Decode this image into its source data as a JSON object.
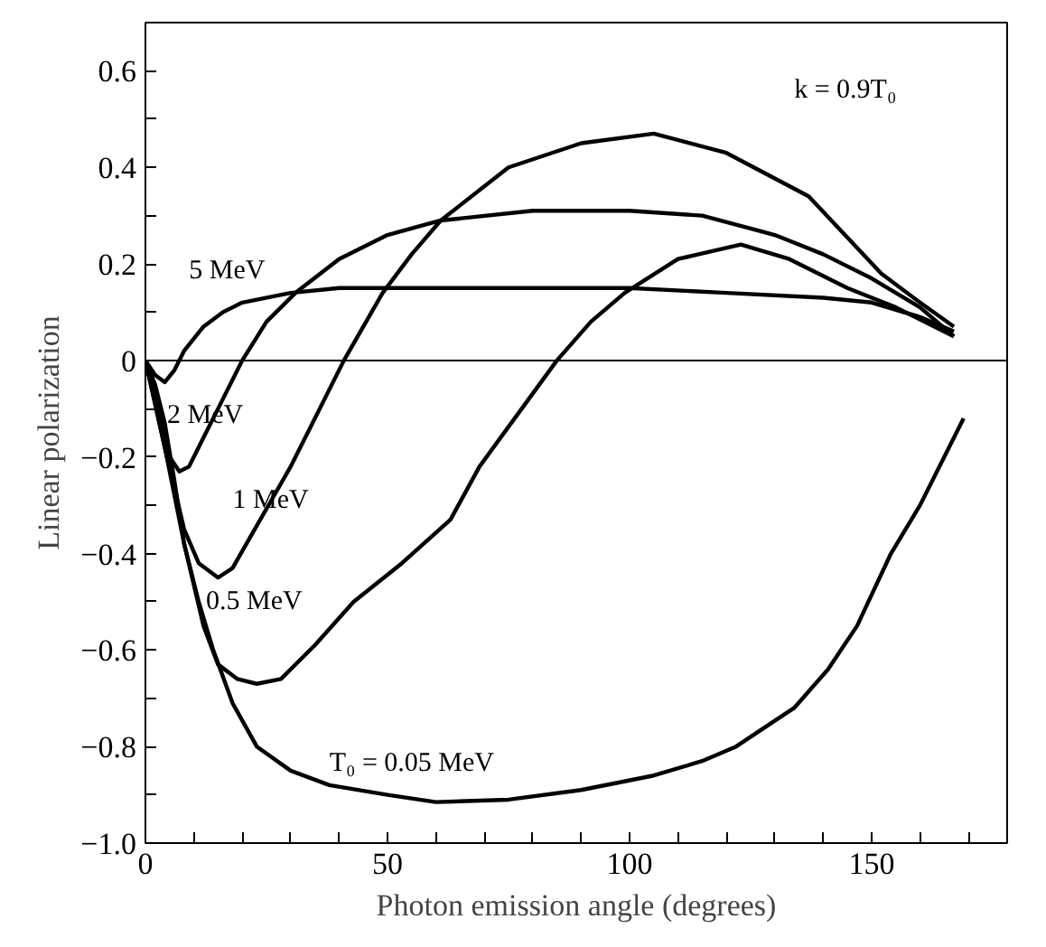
{
  "chart_data": {
    "type": "line",
    "xlabel": "Photon emission angle (degrees)",
    "ylabel": "Linear polarization",
    "xlim": [
      0,
      178
    ],
    "ylim": [
      -1.0,
      0.7
    ],
    "xticks": [
      0,
      {
        "value": 10,
        "label": null
      },
      {
        "value": 20,
        "label": null
      },
      {
        "value": 30,
        "label": null
      },
      {
        "value": 40,
        "label": null
      },
      50,
      {
        "value": 60,
        "label": null
      },
      {
        "value": 70,
        "label": null
      },
      {
        "value": 80,
        "label": null
      },
      {
        "value": 90,
        "label": null
      },
      100,
      {
        "value": 110,
        "label": null
      },
      {
        "value": 120,
        "label": null
      },
      {
        "value": 130,
        "label": null
      },
      {
        "value": 140,
        "label": null
      },
      150,
      {
        "value": 160,
        "label": null
      },
      {
        "value": 170,
        "label": null
      }
    ],
    "yticks": [
      {
        "value": -1.0,
        "label": "−1.0"
      },
      {
        "value": -0.9,
        "label": null
      },
      {
        "value": -0.8,
        "label": "−0.8"
      },
      {
        "value": -0.7,
        "label": null
      },
      {
        "value": -0.6,
        "label": "−0.6"
      },
      {
        "value": -0.5,
        "label": null
      },
      {
        "value": -0.4,
        "label": "−0.4"
      },
      {
        "value": -0.3,
        "label": null
      },
      {
        "value": -0.2,
        "label": "−0.2"
      },
      {
        "value": -0.1,
        "label": null
      },
      0,
      {
        "value": 0.1,
        "label": null
      },
      0.2,
      {
        "value": 0.3,
        "label": null
      },
      0.4,
      {
        "value": 0.5,
        "label": null
      },
      0.6
    ],
    "grid": false,
    "marker": "none",
    "line_style": "solid",
    "ref_lines": [
      {
        "axis": "y",
        "value": 0,
        "color": "#000000"
      }
    ],
    "series": [
      {
        "color": "#000000",
        "x": [
          0,
          2,
          4,
          6,
          8,
          12,
          16,
          20,
          30,
          40,
          60,
          80,
          100,
          120,
          140,
          150,
          160,
          167
        ],
        "values": [
          0,
          -0.03,
          -0.045,
          -0.02,
          0.02,
          0.07,
          0.1,
          0.12,
          0.14,
          0.15,
          0.15,
          0.15,
          0.15,
          0.14,
          0.13,
          0.12,
          0.09,
          0.06
        ]
      },
      {
        "color": "#000000",
        "x": [
          0,
          3,
          5,
          7,
          9,
          12,
          16,
          20,
          25,
          31,
          40,
          50,
          61,
          80,
          100,
          115,
          130,
          140,
          150,
          160,
          167
        ],
        "values": [
          0,
          -0.12,
          -0.2,
          -0.23,
          -0.22,
          -0.16,
          -0.08,
          0,
          0.08,
          0.14,
          0.21,
          0.26,
          0.29,
          0.31,
          0.31,
          0.3,
          0.26,
          0.22,
          0.17,
          0.11,
          0.05
        ]
      },
      {
        "color": "#000000",
        "x": [
          0,
          4,
          8,
          11,
          15,
          18,
          22,
          26,
          30,
          35,
          41,
          49,
          55,
          61,
          75,
          90,
          105,
          120,
          137,
          152,
          160,
          167
        ],
        "values": [
          0,
          -0.18,
          -0.35,
          -0.42,
          -0.45,
          -0.43,
          -0.36,
          -0.29,
          -0.22,
          -0.12,
          0,
          0.14,
          0.22,
          0.29,
          0.4,
          0.45,
          0.47,
          0.43,
          0.34,
          0.18,
          0.12,
          0.07
        ]
      },
      {
        "color": "#000000",
        "x": [
          0,
          4,
          8,
          12,
          15,
          19,
          23,
          28,
          35,
          43,
          53,
          63,
          69,
          77,
          85,
          92,
          99,
          110,
          123,
          133,
          145,
          155,
          167
        ],
        "values": [
          0,
          -0.18,
          -0.38,
          -0.55,
          -0.63,
          -0.66,
          -0.67,
          -0.66,
          -0.59,
          -0.5,
          -0.42,
          -0.33,
          -0.22,
          -0.11,
          0,
          0.08,
          0.14,
          0.21,
          0.24,
          0.21,
          0.15,
          0.11,
          0.05
        ]
      },
      {
        "color": "#000000",
        "x": [
          0,
          2,
          4,
          6,
          8,
          11,
          14,
          18,
          23,
          30,
          38,
          50,
          60,
          75,
          90,
          105,
          115,
          122,
          134,
          141,
          147,
          154,
          160,
          165,
          169
        ],
        "values": [
          0,
          -0.05,
          -0.13,
          -0.25,
          -0.38,
          -0.5,
          -0.6,
          -0.71,
          -0.8,
          -0.85,
          -0.88,
          -0.9,
          -0.915,
          -0.91,
          -0.89,
          -0.86,
          -0.83,
          -0.8,
          -0.72,
          -0.64,
          -0.55,
          -0.4,
          -0.3,
          -0.2,
          -0.12
        ]
      }
    ],
    "annotations": [
      "5 MeV",
      "2 MeV",
      "1 MeV",
      "0.5 MeV",
      "T₀ = 0.05 MeV",
      "k = 0.9T₀"
    ]
  }
}
